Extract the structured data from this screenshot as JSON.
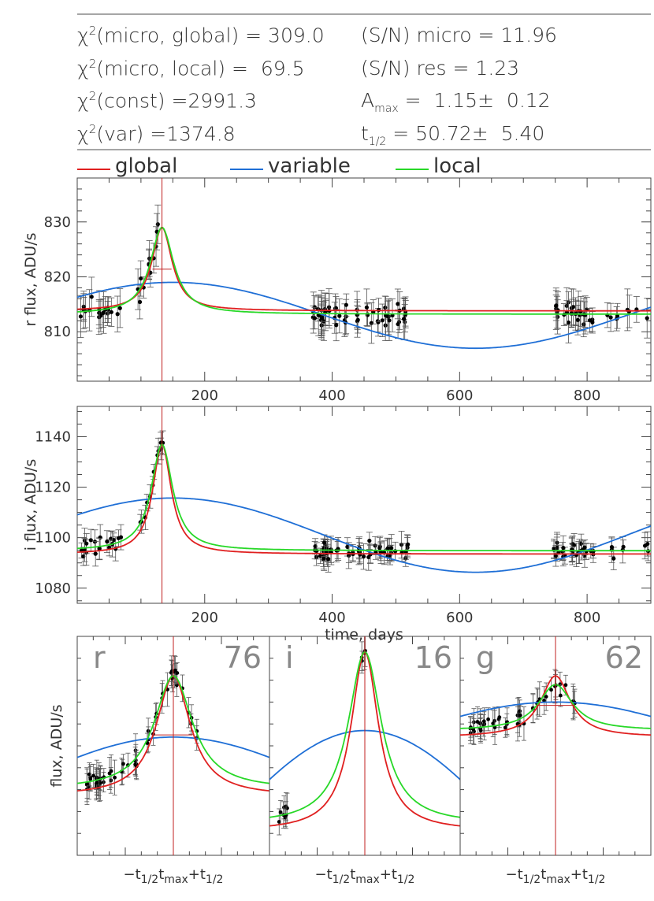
{
  "header": {
    "title": ""
  },
  "stats_left": [
    {
      "label": "χ²(micro, global) = 309.0"
    },
    {
      "label": "χ²(micro, local) =  69.5"
    },
    {
      "label": "χ²(const) =2991.3"
    },
    {
      "label": "χ²(var) =1374.8"
    }
  ],
  "stats_right": [
    {
      "label": "(S/N) micro = 11.96"
    },
    {
      "label": "(S/N) res = 1.23"
    },
    {
      "label": "A_max =  1.15±  0.12"
    },
    {
      "label": "t_1/2 = 50.72±  5.40"
    }
  ],
  "legend": [
    {
      "name": "global",
      "color": "#e02020"
    },
    {
      "name": "variable",
      "color": "#1f6fd6"
    },
    {
      "name": "local",
      "color": "#28d828"
    }
  ],
  "chart_data": [
    {
      "type": "scatter",
      "id": "r-band",
      "ylabel": "r flux, ADU/s",
      "xlabel": "",
      "xlim": [
        0,
        900
      ],
      "ylim": [
        801,
        838
      ],
      "xticks": [
        200,
        400,
        600,
        800
      ],
      "yticks": [
        810,
        820,
        830
      ],
      "t_max": 133,
      "baseline_global": 813.8,
      "baseline_local": 813.2,
      "peak_value": 829.0,
      "variable_mean": 813.0,
      "variable_amp": 6.0,
      "variable_period": 950,
      "variable_phase_day": 150
    },
    {
      "type": "scatter",
      "id": "i-band",
      "ylabel": "i flux, ADU/s",
      "xlabel": "time, days",
      "xlim": [
        0,
        900
      ],
      "ylim": [
        1074,
        1152
      ],
      "xticks": [
        200,
        400,
        600,
        800
      ],
      "yticks": [
        1080,
        1100,
        1120,
        1140
      ],
      "t_max": 133,
      "baseline_global": 1093.5,
      "baseline_local": 1094.8,
      "peak_value": 1137,
      "variable_mean": 1101,
      "variable_amp": 14.7,
      "variable_period": 950,
      "variable_phase_day": 150
    }
  ],
  "zoom_panels": [
    {
      "band": "r",
      "count": "76"
    },
    {
      "band": "i",
      "count": "16"
    },
    {
      "band": "g",
      "count": "62"
    }
  ],
  "zoom_ylabel": "flux, ADU/s",
  "zoom_xlabel": "−t½ tmax +t½"
}
